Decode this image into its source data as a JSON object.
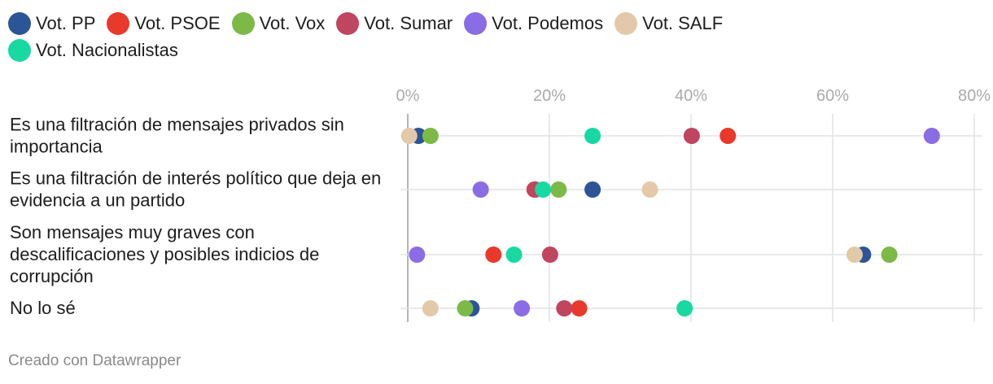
{
  "chart_data": {
    "type": "scatter",
    "xlim": [
      0,
      80
    ],
    "x_ticks": [
      "0%",
      "20%",
      "40%",
      "60%",
      "80%"
    ],
    "legend_position": "top",
    "grid": true,
    "series": [
      {
        "name": "Vot. PP",
        "color": "#2b5597"
      },
      {
        "name": "Vot. PSOE",
        "color": "#e8392c"
      },
      {
        "name": "Vot. Vox",
        "color": "#7cb947"
      },
      {
        "name": "Vot. Sumar",
        "color": "#c0455e"
      },
      {
        "name": "Vot. Podemos",
        "color": "#8a6de4"
      },
      {
        "name": "Vot. SALF",
        "color": "#e3c9a9"
      },
      {
        "name": "Vot. Nacionalistas",
        "color": "#17d9a1"
      }
    ],
    "rows": [
      {
        "label": "Es una filtración de mensajes privados sin importancia",
        "values": {
          "Vot. PP": 1.5,
          "Vot. PSOE": 45.2,
          "Vot. Vox": 3.2,
          "Vot. Sumar": 40.1,
          "Vot. Podemos": 74.0,
          "Vot. SALF": 0.2,
          "Vot. Nacionalistas": 26.1
        }
      },
      {
        "label": "Es una filtración de interés político que deja en evidencia a un partido",
        "values": {
          "Vot. PP": 26.1,
          "Vot. PSOE": 17.9,
          "Vot. Vox": 21.3,
          "Vot. Sumar": 18.0,
          "Vot. Podemos": 10.3,
          "Vot. SALF": 34.2,
          "Vot. Nacionalistas": 19.1
        }
      },
      {
        "label": "Son mensajes muy graves con descalificaciones y posibles indicios de corrupción",
        "values": {
          "Vot. PP": 64.3,
          "Vot. PSOE": 12.1,
          "Vot. Vox": 68.0,
          "Vot. Sumar": 20.1,
          "Vot. Podemos": 1.3,
          "Vot. SALF": 63.1,
          "Vot. Nacionalistas": 15.0
        }
      },
      {
        "label": "No lo sé",
        "values": {
          "Vot. PP": 9.0,
          "Vot. PSOE": 24.2,
          "Vot. Vox": 8.1,
          "Vot. Sumar": 22.1,
          "Vot. Podemos": 16.1,
          "Vot. SALF": 3.2,
          "Vot. Nacionalistas": 39.1
        }
      }
    ]
  },
  "credit": "Creado con Datawrapper"
}
